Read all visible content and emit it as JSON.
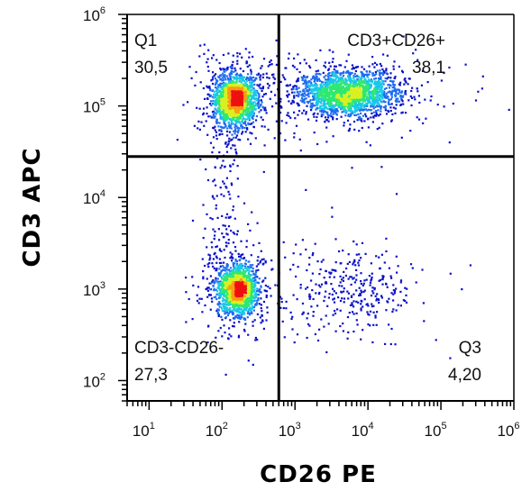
{
  "chart_data": {
    "type": "scatter",
    "subtype": "flow-cytometry-density-dot-plot",
    "xlabel": "CD26 PE",
    "ylabel": "CD3 APC",
    "x_scale": "log",
    "y_scale": "log",
    "xlim": [
      5,
      1000000
    ],
    "ylim": [
      60,
      1000000
    ],
    "x_ticks": [
      {
        "base": "10",
        "exp": "1",
        "value": 10
      },
      {
        "base": "10",
        "exp": "2",
        "value": 100
      },
      {
        "base": "10",
        "exp": "3",
        "value": 1000
      },
      {
        "base": "10",
        "exp": "4",
        "value": 10000
      },
      {
        "base": "10",
        "exp": "5",
        "value": 100000
      },
      {
        "base": "10",
        "exp": "6",
        "value": 1000000
      }
    ],
    "y_ticks": [
      {
        "base": "10",
        "exp": "2",
        "value": 100
      },
      {
        "base": "10",
        "exp": "3",
        "value": 1000
      },
      {
        "base": "10",
        "exp": "4",
        "value": 10000
      },
      {
        "base": "10",
        "exp": "5",
        "value": 100000
      },
      {
        "base": "10",
        "exp": "6",
        "value": 1000000
      }
    ],
    "gates": {
      "x": 600,
      "y": 28000
    },
    "quadrants": [
      {
        "name": "Q1",
        "value": "30,5",
        "position": "top-left"
      },
      {
        "name": "CD3+CD26+",
        "value": "38,1",
        "position": "top-right"
      },
      {
        "name": "CD3-CD26-",
        "value": "27,3",
        "position": "bottom-left"
      },
      {
        "name": "Q3",
        "value": "4,20",
        "position": "bottom-right"
      }
    ],
    "populations": [
      {
        "cx": 150,
        "cy": 120000,
        "sx": 0.15,
        "sy": 0.14,
        "count": 1700
      },
      {
        "cx": 5000,
        "cy": 140000,
        "sx": 0.34,
        "sy": 0.12,
        "count": 2000
      },
      {
        "cx": 160,
        "cy": 1000,
        "sx": 0.14,
        "sy": 0.14,
        "count": 1550
      },
      {
        "cx": 7000,
        "cy": 1000,
        "sx": 0.38,
        "sy": 0.2,
        "count": 240
      }
    ],
    "density_colors": [
      "#0a10c8",
      "#1e6cf0",
      "#18c8e8",
      "#2ee870",
      "#d8f020",
      "#ff9a10",
      "#ee1010"
    ],
    "grid": false
  }
}
